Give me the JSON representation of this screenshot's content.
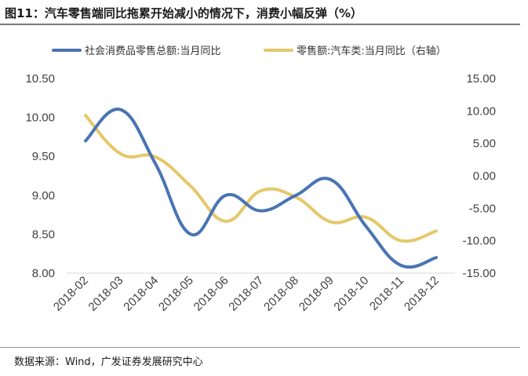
{
  "figure": {
    "title": "图11：汽车零售端同比拖累开始减小的情况下，消费小幅反弹（%）",
    "source": "数据来源：Wind，广发证券发展研究中心"
  },
  "chart_data": {
    "type": "line",
    "categories": [
      "2018-02",
      "2018-03",
      "2018-04",
      "2018-05",
      "2018-06",
      "2018-07",
      "2018-08",
      "2018-09",
      "2018-10",
      "2018-11",
      "2018-12"
    ],
    "series": [
      {
        "name": "社会消费品零售总额:当月同比",
        "axis": "left",
        "color": "#4a74b3",
        "values": [
          9.7,
          10.1,
          9.4,
          8.5,
          9.0,
          8.8,
          9.0,
          9.2,
          8.6,
          8.1,
          8.2
        ]
      },
      {
        "name": "零售额:汽车类:当月同比（右轴）",
        "axis": "right",
        "color": "#e5c86a",
        "values": [
          9.3,
          3.4,
          2.9,
          -1.6,
          -7.0,
          -2.3,
          -3.3,
          -7.1,
          -6.4,
          -10.0,
          -8.5
        ]
      }
    ],
    "y_left": {
      "lim": [
        8.0,
        10.5
      ],
      "ticks": [
        "8.00",
        "8.50",
        "9.00",
        "9.50",
        "10.00",
        "10.50"
      ]
    },
    "y_right": {
      "lim": [
        -15.0,
        15.0
      ],
      "ticks": [
        "-15.00",
        "-10.00",
        "-5.00",
        "0.00",
        "5.00",
        "10.00",
        "15.00"
      ]
    },
    "grid": false,
    "legend_position": "top"
  }
}
